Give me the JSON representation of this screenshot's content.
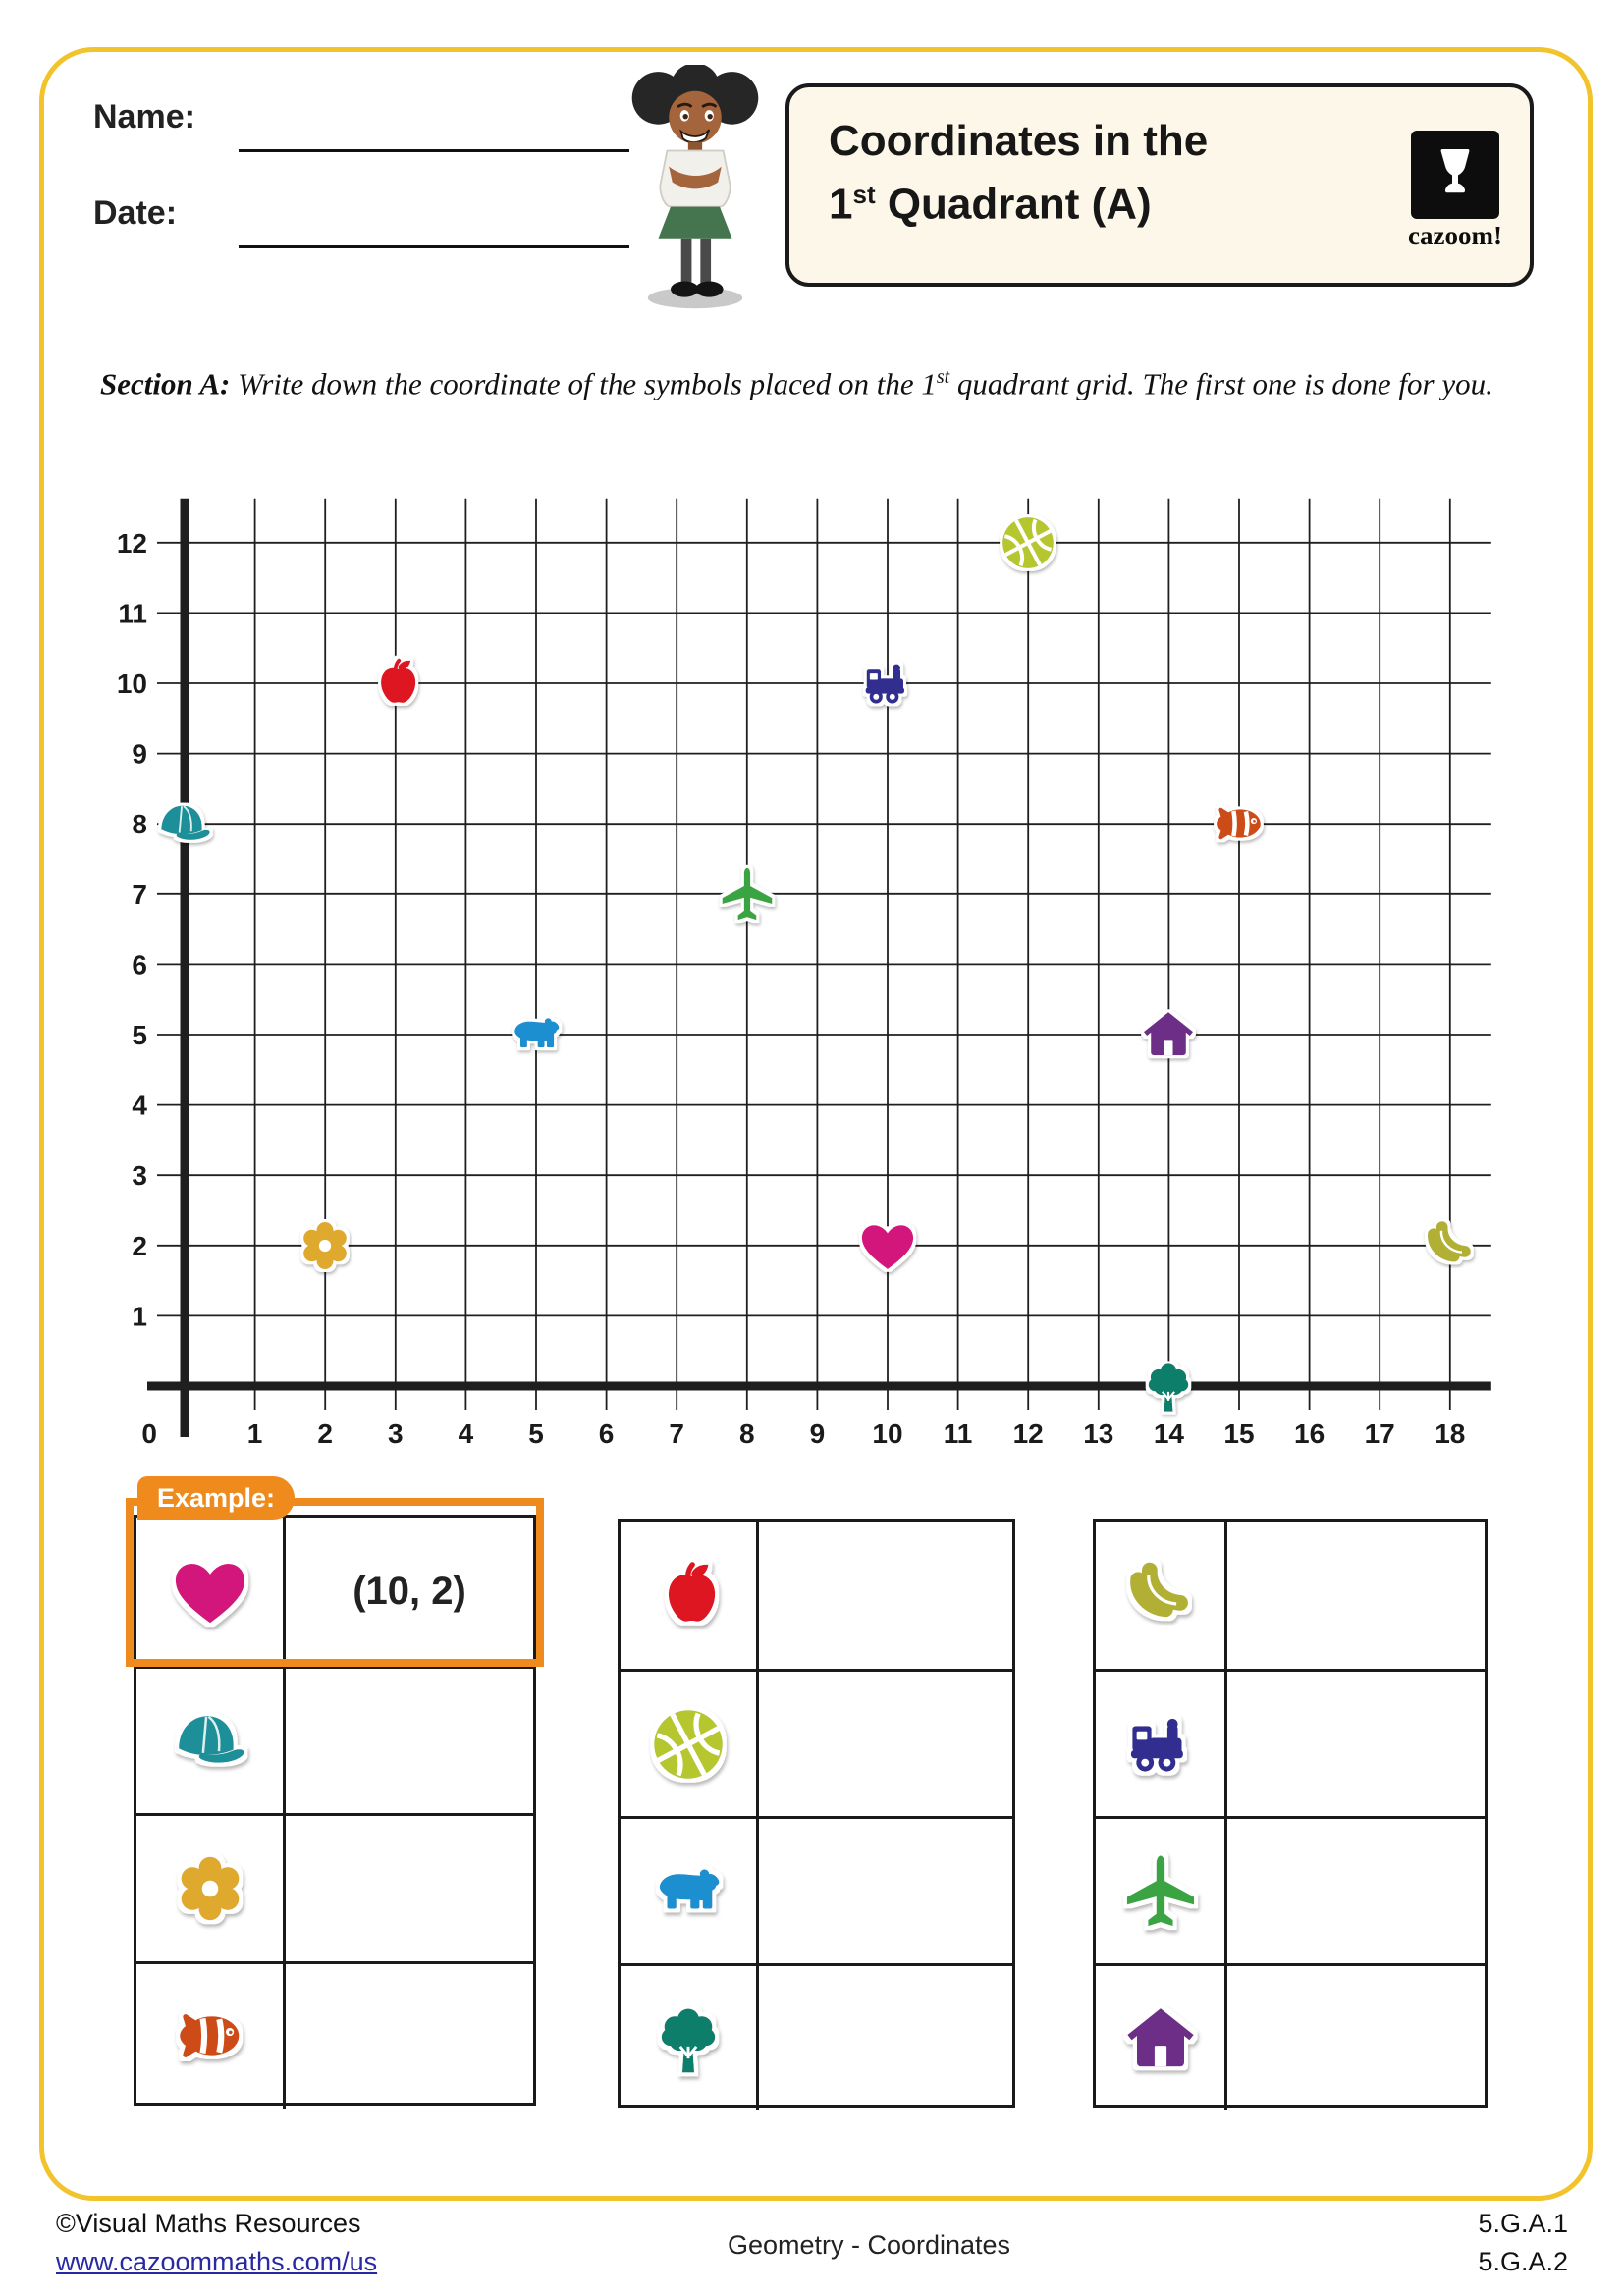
{
  "header": {
    "name_label": "Name:",
    "date_label": "Date:",
    "title_line1": "Coordinates in the",
    "title_line2_num": "1",
    "title_line2_sup": "st",
    "title_line2_rest": " Quadrant (A)",
    "logo_text": "cazoom!"
  },
  "section_a": {
    "label": "Section A:",
    "instruction_part1": "  Write down the coordinate of the symbols placed on the 1",
    "instruction_sup": "st",
    "instruction_part2": " quadrant grid. The first one is done for you."
  },
  "chart_data": {
    "type": "scatter",
    "title": "",
    "xlabel": "",
    "ylabel": "",
    "x_range": [
      0,
      18
    ],
    "y_range": [
      0,
      12
    ],
    "grid": true,
    "x_ticks": [
      0,
      1,
      2,
      3,
      4,
      5,
      6,
      7,
      8,
      9,
      10,
      11,
      12,
      13,
      14,
      15,
      16,
      17,
      18
    ],
    "y_ticks": [
      1,
      2,
      3,
      4,
      5,
      6,
      7,
      8,
      9,
      10,
      11,
      12
    ],
    "origin_label": "0",
    "symbols": [
      {
        "name": "cap",
        "x": 0,
        "y": 8,
        "color": "#1D8F99"
      },
      {
        "name": "flower",
        "x": 2,
        "y": 2,
        "color": "#DFA92F"
      },
      {
        "name": "apple",
        "x": 3,
        "y": 10,
        "color": "#DD1423"
      },
      {
        "name": "bear",
        "x": 5,
        "y": 5,
        "color": "#1E8FD0"
      },
      {
        "name": "airplane",
        "x": 8,
        "y": 7,
        "color": "#3BA442"
      },
      {
        "name": "train",
        "x": 10,
        "y": 10,
        "color": "#312E90"
      },
      {
        "name": "heart",
        "x": 10,
        "y": 2,
        "color": "#D3147C"
      },
      {
        "name": "basketball",
        "x": 12,
        "y": 12,
        "color": "#B5C62F"
      },
      {
        "name": "tree",
        "x": 14,
        "y": 0,
        "color": "#117E6B"
      },
      {
        "name": "house",
        "x": 14,
        "y": 5,
        "color": "#6C2E87"
      },
      {
        "name": "fish",
        "x": 15,
        "y": 8,
        "color": "#CC4B14"
      },
      {
        "name": "banana",
        "x": 18,
        "y": 2,
        "color": "#B1B034"
      }
    ]
  },
  "example": {
    "tab_label": "Example:",
    "symbol": "heart",
    "value": "(10, 2)",
    "accent_color": "#EF8B1D"
  },
  "tables": [
    {
      "rows": [
        "heart",
        "cap",
        "flower",
        "fish"
      ]
    },
    {
      "rows": [
        "apple",
        "basketball",
        "bear",
        "tree"
      ]
    },
    {
      "rows": [
        "banana",
        "train",
        "airplane",
        "house"
      ]
    }
  ],
  "footer": {
    "copyright": "©Visual Maths Resources",
    "link": "www.cazoommaths.com/us",
    "center": "Geometry - Coordinates",
    "standards": [
      "5.G.A.1",
      "5.G.A.2"
    ]
  },
  "colors": {
    "page_border": "#F3C32B",
    "title_box_bg": "#FCF7E8",
    "accent_orange": "#EF8B1D",
    "link_blue": "#2929A3"
  }
}
